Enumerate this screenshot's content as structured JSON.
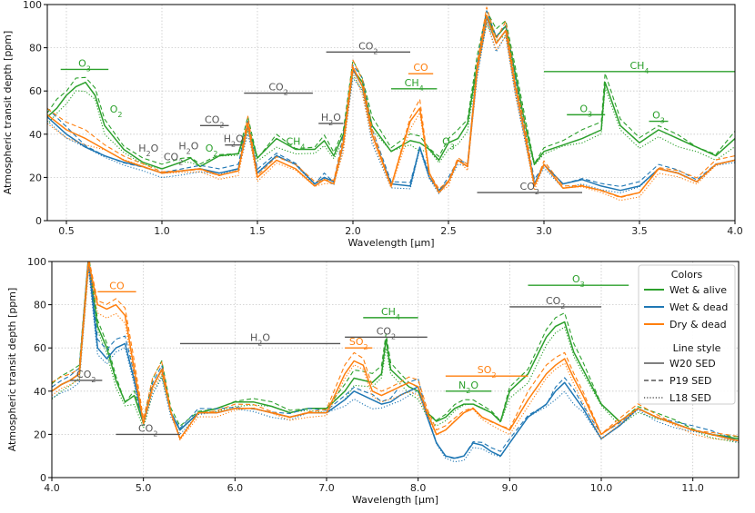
{
  "chart_data": [
    {
      "type": "line",
      "title": "",
      "xlabel": "Wavelength [µm]",
      "ylabel": "Atmospheric transit depth [ppm]",
      "xlim": [
        0.4,
        4.0
      ],
      "ylim": [
        0,
        100
      ],
      "grid": true,
      "xticks": [
        0.5,
        1.0,
        1.5,
        2.0,
        2.5,
        3.0,
        3.5,
        4.0
      ],
      "xtick_labels": [
        "0.5",
        "1.0",
        "1.5",
        "2.0",
        "2.5",
        "3.0",
        "3.5",
        "4.0"
      ],
      "yticks": [
        0,
        20,
        40,
        60,
        80,
        100
      ],
      "ytick_labels": [
        "0",
        "20",
        "40",
        "60",
        "80",
        "100"
      ],
      "series": [
        {
          "name": "Wet & alive",
          "color": "#2ca02c",
          "style": "solid",
          "x": [
            0.4,
            0.45,
            0.5,
            0.55,
            0.6,
            0.65,
            0.7,
            0.8,
            0.9,
            1.0,
            1.1,
            1.15,
            1.2,
            1.3,
            1.4,
            1.45,
            1.5,
            1.6,
            1.7,
            1.8,
            1.85,
            1.9,
            1.95,
            2.0,
            2.05,
            2.1,
            2.2,
            2.3,
            2.35,
            2.4,
            2.45,
            2.5,
            2.55,
            2.6,
            2.65,
            2.7,
            2.75,
            2.8,
            2.85,
            2.9,
            2.95,
            3.0,
            3.1,
            3.2,
            3.3,
            3.32,
            3.4,
            3.5,
            3.6,
            3.7,
            3.8,
            3.9,
            4.0
          ],
          "y": [
            48,
            52,
            58,
            62,
            64,
            58,
            44,
            33,
            27,
            24,
            27,
            29,
            25,
            30,
            31,
            44,
            29,
            38,
            33,
            33,
            37,
            30,
            40,
            70,
            64,
            44,
            32,
            37,
            36,
            33,
            28,
            36,
            38,
            45,
            72,
            95,
            85,
            90,
            68,
            45,
            26,
            32,
            35,
            38,
            42,
            64,
            44,
            36,
            42,
            38,
            34,
            30,
            38
          ]
        },
        {
          "name": "Wet & dead",
          "color": "#1f77b4",
          "style": "solid",
          "x": [
            0.4,
            0.5,
            0.6,
            0.7,
            0.8,
            0.9,
            1.0,
            1.1,
            1.2,
            1.3,
            1.4,
            1.45,
            1.5,
            1.6,
            1.7,
            1.8,
            1.85,
            1.9,
            1.95,
            2.0,
            2.05,
            2.1,
            2.2,
            2.3,
            2.35,
            2.4,
            2.45,
            2.5,
            2.55,
            2.6,
            2.65,
            2.7,
            2.75,
            2.8,
            2.85,
            2.9,
            2.95,
            3.0,
            3.1,
            3.2,
            3.3,
            3.4,
            3.5,
            3.6,
            3.7,
            3.8,
            3.9,
            4.0
          ],
          "y": [
            48,
            40,
            34,
            30,
            27,
            25,
            22,
            23,
            24,
            22,
            24,
            44,
            22,
            30,
            26,
            17,
            20,
            18,
            36,
            70,
            62,
            40,
            17,
            16,
            34,
            20,
            14,
            18,
            28,
            25,
            70,
            94,
            82,
            88,
            62,
            40,
            17,
            26,
            17,
            19,
            16,
            14,
            16,
            24,
            22,
            18,
            26,
            28
          ]
        },
        {
          "name": "Dry & dead",
          "color": "#ff7f0e",
          "style": "solid",
          "x": [
            0.4,
            0.5,
            0.6,
            0.7,
            0.8,
            0.9,
            1.0,
            1.1,
            1.2,
            1.3,
            1.4,
            1.45,
            1.5,
            1.6,
            1.7,
            1.8,
            1.85,
            1.9,
            1.95,
            2.0,
            2.05,
            2.1,
            2.2,
            2.3,
            2.35,
            2.4,
            2.45,
            2.5,
            2.55,
            2.6,
            2.65,
            2.7,
            2.75,
            2.8,
            2.85,
            2.9,
            2.95,
            3.0,
            3.1,
            3.2,
            3.3,
            3.4,
            3.5,
            3.6,
            3.7,
            3.8,
            3.9,
            4.0
          ],
          "y": [
            49,
            42,
            38,
            33,
            28,
            25,
            22,
            23,
            24,
            21,
            23,
            45,
            20,
            28,
            24,
            16,
            19,
            17,
            36,
            71,
            62,
            40,
            16,
            46,
            52,
            22,
            13,
            18,
            28,
            25,
            70,
            95,
            82,
            88,
            62,
            40,
            16,
            26,
            15,
            16,
            14,
            11,
            13,
            24,
            22,
            18,
            26,
            28
          ]
        }
      ],
      "annotations": [
        {
          "text": "O3",
          "color": "#2ca02c",
          "x_span": [
            0.47,
            0.72
          ],
          "y": 70
        },
        {
          "text": "O2",
          "color": "#2ca02c",
          "x": 0.76,
          "y": 50
        },
        {
          "text": "H2O",
          "color": "#555555",
          "x": 0.93,
          "y": 32
        },
        {
          "text": "CO2",
          "color": "#555555",
          "x": 1.06,
          "y": 28
        },
        {
          "text": "H2O",
          "color": "#555555",
          "x": 1.14,
          "y": 33
        },
        {
          "text": "O2",
          "color": "#2ca02c",
          "x": 1.26,
          "y": 32
        },
        {
          "text": "CO2",
          "color": "#555555",
          "x_span": [
            1.2,
            1.35
          ],
          "y": 44
        },
        {
          "text": "H2O",
          "color": "#555555",
          "x_span": [
            1.33,
            1.42
          ],
          "y": 35
        },
        {
          "text": "CO2",
          "color": "#555555",
          "x_span": [
            1.43,
            1.79
          ],
          "y": 59
        },
        {
          "text": "CH4",
          "color": "#2ca02c",
          "x": 1.7,
          "y": 35
        },
        {
          "text": "H2O",
          "color": "#555555",
          "x_span": [
            1.82,
            1.95
          ],
          "y": 45
        },
        {
          "text": "CO2",
          "color": "#555555",
          "x_span": [
            1.86,
            2.3
          ],
          "y": 78
        },
        {
          "text": "CO",
          "color": "#ff7f0e",
          "x_span": [
            2.29,
            2.42
          ],
          "y": 68
        },
        {
          "text": "CH4",
          "color": "#2ca02c",
          "x_span": [
            2.2,
            2.44
          ],
          "y": 61
        },
        {
          "text": "O3",
          "color": "#2ca02c",
          "x": 2.5,
          "y": 35
        },
        {
          "text": "CO2",
          "color": "#555555",
          "x_span": [
            2.65,
            3.2
          ],
          "y": 13
        },
        {
          "text": "CH4",
          "color": "#2ca02c",
          "x_span": [
            3.0,
            4.0
          ],
          "y": 69
        },
        {
          "text": "O3",
          "color": "#2ca02c",
          "x_span": [
            3.12,
            3.32
          ],
          "y": 49
        },
        {
          "text": "O3",
          "color": "#2ca02c",
          "x_span": [
            3.55,
            3.65
          ],
          "y": 46
        }
      ]
    },
    {
      "type": "line",
      "title": "",
      "xlabel": "Wavelength [µm]",
      "ylabel": "Atmospheric transit depth [ppm]",
      "xlim": [
        4.0,
        11.5
      ],
      "ylim": [
        0,
        100
      ],
      "grid": true,
      "xticks": [
        4.0,
        5.0,
        6.0,
        7.0,
        8.0,
        9.0,
        10.0,
        11.0
      ],
      "xtick_labels": [
        "4.0",
        "5.0",
        "6.0",
        "7.0",
        "8.0",
        "9.0",
        "10.0",
        "11.0"
      ],
      "yticks": [
        0,
        20,
        40,
        60,
        80,
        100
      ],
      "ytick_labels": [
        "0",
        "20",
        "40",
        "60",
        "80",
        "100"
      ],
      "series": [
        {
          "name": "Wet & alive",
          "color": "#2ca02c",
          "style": "solid",
          "x": [
            4.0,
            4.1,
            4.2,
            4.3,
            4.4,
            4.5,
            4.6,
            4.7,
            4.8,
            4.9,
            5.0,
            5.1,
            5.2,
            5.3,
            5.4,
            5.6,
            5.8,
            6.0,
            6.2,
            6.4,
            6.6,
            6.8,
            7.0,
            7.2,
            7.3,
            7.4,
            7.5,
            7.6,
            7.65,
            7.7,
            7.8,
            7.9,
            8.0,
            8.1,
            8.2,
            8.3,
            8.4,
            8.5,
            8.6,
            8.7,
            8.8,
            8.9,
            9.0,
            9.2,
            9.4,
            9.5,
            9.6,
            9.7,
            9.8,
            10.0,
            10.2,
            10.4,
            10.6,
            10.8,
            11.0,
            11.2,
            11.5
          ],
          "y": [
            40,
            43,
            45,
            48,
            100,
            70,
            60,
            45,
            35,
            38,
            25,
            42,
            50,
            30,
            22,
            30,
            32,
            35,
            35,
            33,
            30,
            32,
            32,
            40,
            46,
            45,
            44,
            48,
            64,
            50,
            46,
            42,
            40,
            30,
            26,
            28,
            32,
            34,
            34,
            32,
            30,
            26,
            40,
            48,
            65,
            70,
            72,
            58,
            50,
            34,
            26,
            32,
            28,
            25,
            22,
            20,
            18
          ]
        },
        {
          "name": "Wet & dead",
          "color": "#1f77b4",
          "style": "solid",
          "x": [
            4.0,
            4.1,
            4.2,
            4.3,
            4.4,
            4.5,
            4.6,
            4.7,
            4.8,
            4.9,
            5.0,
            5.1,
            5.2,
            5.3,
            5.4,
            5.6,
            5.8,
            6.0,
            6.2,
            6.4,
            6.6,
            6.8,
            7.0,
            7.2,
            7.3,
            7.4,
            7.5,
            7.6,
            7.7,
            7.8,
            7.9,
            8.0,
            8.1,
            8.2,
            8.3,
            8.4,
            8.5,
            8.6,
            8.7,
            8.8,
            8.9,
            9.0,
            9.2,
            9.4,
            9.5,
            9.6,
            9.7,
            9.8,
            10.0,
            10.2,
            10.4,
            10.6,
            10.8,
            11.0,
            11.2,
            11.5
          ],
          "y": [
            40,
            43,
            45,
            48,
            100,
            60,
            55,
            60,
            62,
            45,
            25,
            42,
            50,
            30,
            22,
            30,
            30,
            32,
            32,
            30,
            28,
            30,
            30,
            36,
            40,
            38,
            36,
            34,
            35,
            38,
            40,
            42,
            28,
            16,
            10,
            9,
            10,
            16,
            15,
            12,
            10,
            16,
            28,
            34,
            40,
            44,
            38,
            32,
            18,
            24,
            32,
            28,
            25,
            22,
            20,
            17
          ]
        },
        {
          "name": "Dry & dead",
          "color": "#ff7f0e",
          "style": "solid",
          "x": [
            4.0,
            4.1,
            4.2,
            4.3,
            4.4,
            4.5,
            4.6,
            4.7,
            4.8,
            4.9,
            5.0,
            5.1,
            5.2,
            5.3,
            5.4,
            5.6,
            5.8,
            6.0,
            6.2,
            6.4,
            6.6,
            6.8,
            7.0,
            7.2,
            7.3,
            7.4,
            7.5,
            7.6,
            7.7,
            7.8,
            7.9,
            8.0,
            8.1,
            8.2,
            8.3,
            8.4,
            8.5,
            8.6,
            8.7,
            8.8,
            8.9,
            9.0,
            9.2,
            9.4,
            9.5,
            9.6,
            9.7,
            9.8,
            10.0,
            10.2,
            10.4,
            10.6,
            10.8,
            11.0,
            11.2,
            11.5
          ],
          "y": [
            40,
            43,
            45,
            48,
            100,
            80,
            78,
            80,
            75,
            50,
            25,
            42,
            50,
            30,
            18,
            30,
            30,
            32,
            32,
            30,
            28,
            30,
            30,
            48,
            54,
            52,
            40,
            38,
            40,
            42,
            44,
            42,
            30,
            20,
            22,
            26,
            30,
            32,
            28,
            26,
            24,
            22,
            36,
            48,
            52,
            55,
            46,
            38,
            20,
            26,
            32,
            28,
            25,
            22,
            20,
            17
          ]
        }
      ],
      "annotations": [
        {
          "text": "CO",
          "color": "#ff7f0e",
          "x_span": [
            4.5,
            4.92
          ],
          "y": 86
        },
        {
          "text": "CO2",
          "color": "#555555",
          "x_span": [
            4.2,
            4.55
          ],
          "y": 45
        },
        {
          "text": "CO2",
          "color": "#555555",
          "x_span": [
            4.7,
            5.4
          ],
          "y": 20
        },
        {
          "text": "H2O",
          "color": "#555555",
          "x_span": [
            5.4,
            7.15
          ],
          "y": 62
        },
        {
          "text": "CH4",
          "color": "#2ca02c",
          "x_span": [
            7.4,
            8.0
          ],
          "y": 74
        },
        {
          "text": "CO2",
          "color": "#555555",
          "x_span": [
            7.2,
            8.1
          ],
          "y": 65
        },
        {
          "text": "SO2",
          "color": "#ff7f0e",
          "x_span": [
            7.2,
            7.5
          ],
          "y": 60
        },
        {
          "text": "SO2",
          "color": "#ff7f0e",
          "x_span": [
            8.3,
            9.2
          ],
          "y": 47
        },
        {
          "text": "N2O",
          "color": "#2ca02c",
          "x_span": [
            8.3,
            8.8
          ],
          "y": 40
        },
        {
          "text": "O3",
          "color": "#2ca02c",
          "x_span": [
            9.2,
            10.3
          ],
          "y": 89
        },
        {
          "text": "CO2",
          "color": "#555555",
          "x_span": [
            9.0,
            10.0
          ],
          "y": 79
        }
      ],
      "legend": {
        "placement": "top-right",
        "colors_title": "Colors",
        "colors": [
          {
            "label": "Wet & alive",
            "color": "#2ca02c"
          },
          {
            "label": "Wet & dead",
            "color": "#1f77b4"
          },
          {
            "label": "Dry & dead",
            "color": "#ff7f0e"
          }
        ],
        "linestyle_title": "Line style",
        "linestyles": [
          {
            "label": "W20 SED",
            "style": "solid"
          },
          {
            "label": "P19 SED",
            "style": "dashed"
          },
          {
            "label": "L18 SED",
            "style": "dotted"
          }
        ]
      }
    }
  ]
}
